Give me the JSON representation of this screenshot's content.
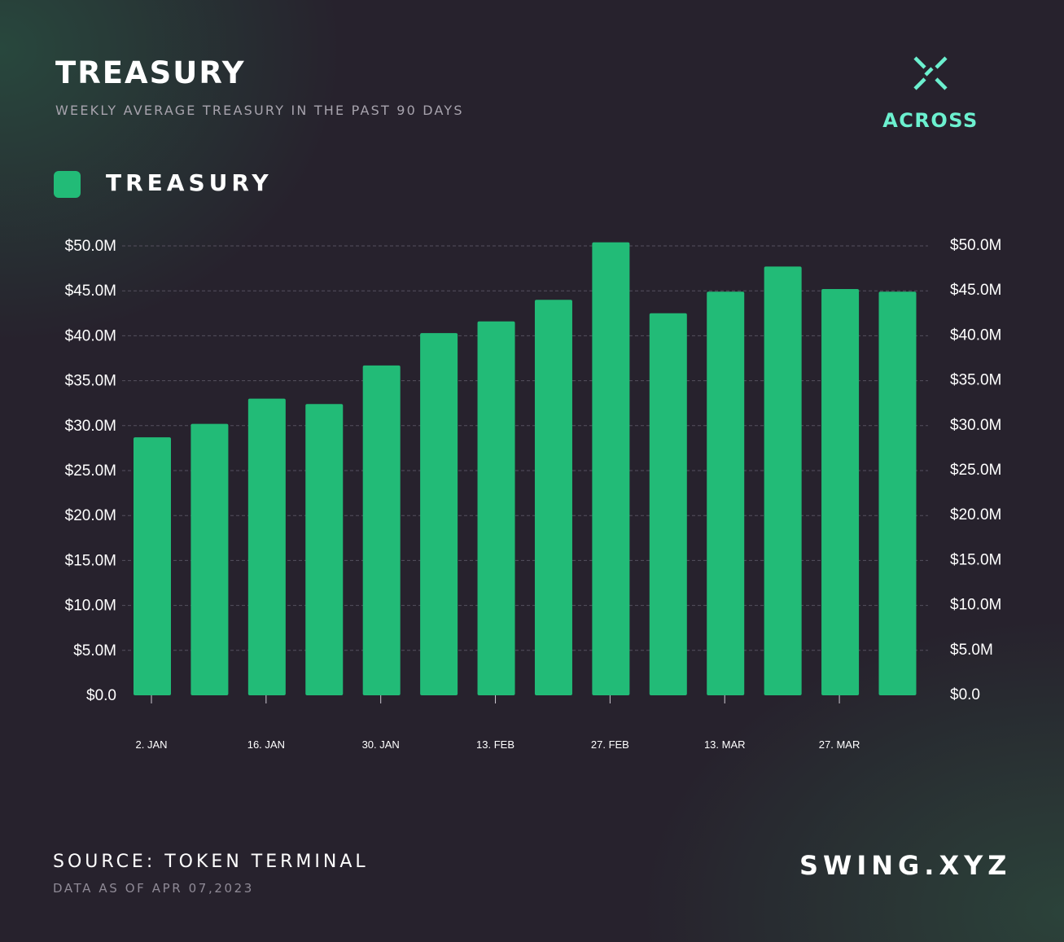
{
  "header": {
    "title": "TREASURY",
    "subtitle": "WEEKLY AVERAGE TREASURY IN THE PAST 90 DAYS"
  },
  "brand": {
    "name": "ACROSS",
    "icon": "across-logo-icon",
    "color": "#6cf0cf"
  },
  "legend": {
    "label": "TREASURY",
    "color": "#22bb77"
  },
  "footer": {
    "source": "SOURCE: TOKEN TERMINAL",
    "data_as_of": "DATA AS OF APR 07,2023",
    "site": "SWING.XYZ"
  },
  "chart_data": {
    "type": "bar",
    "x_tick_labels": [
      "2. JAN",
      "16. JAN",
      "30. JAN",
      "13. FEB",
      "27. FEB",
      "13. MAR",
      "27. MAR"
    ],
    "series": [
      {
        "name": "TREASURY",
        "color": "#22bb77",
        "values": [
          28.7,
          30.2,
          33.0,
          32.4,
          36.7,
          40.3,
          41.6,
          44.0,
          50.4,
          42.5,
          44.9,
          47.7,
          45.2,
          44.9
        ]
      }
    ],
    "y_tick_labels": [
      "$0.0",
      "$5.0M",
      "$10.0M",
      "$15.0M",
      "$20.0M",
      "$25.0M",
      "$30.0M",
      "$35.0M",
      "$40.0M",
      "$45.0M",
      "$50.0M"
    ],
    "ylim": [
      0,
      50
    ],
    "y_unit": "M",
    "dual_y_axis": true,
    "grid": true,
    "legend_position": "top-left"
  }
}
